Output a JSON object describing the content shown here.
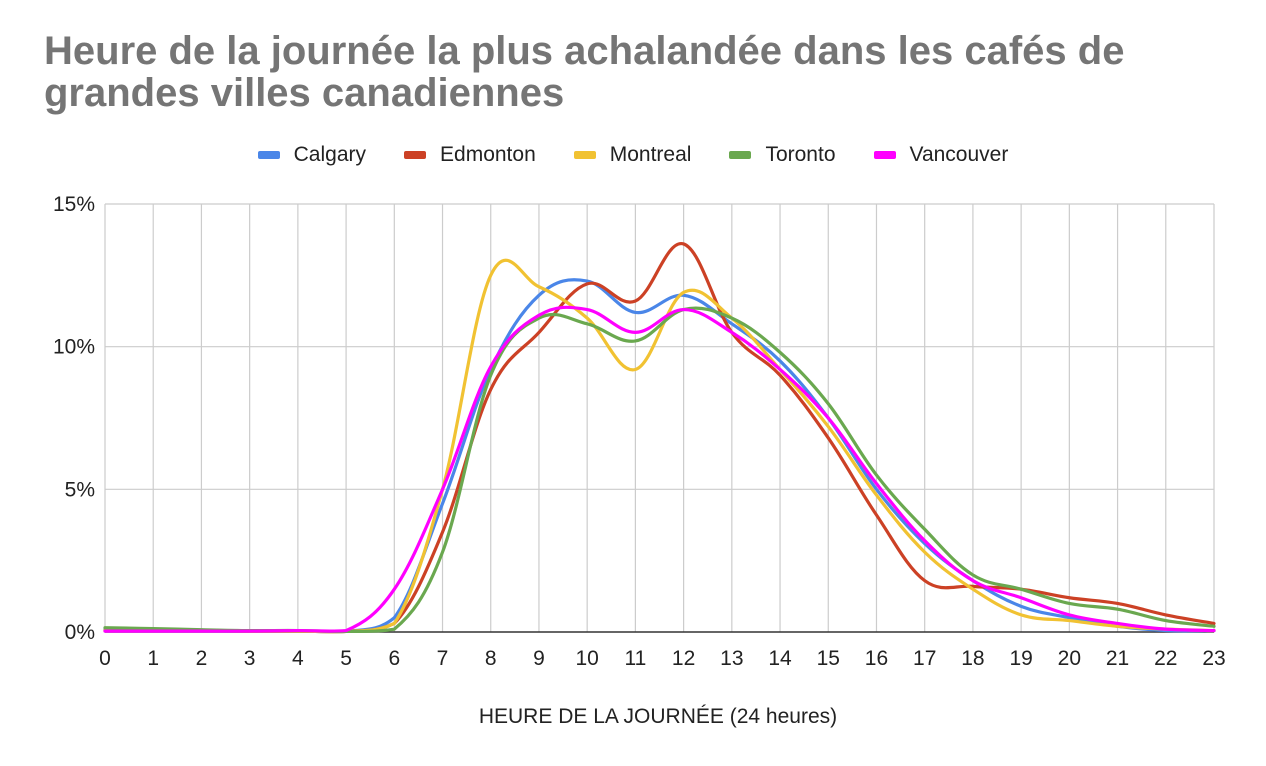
{
  "chart_data": {
    "type": "line",
    "title": "Heure de la journée la plus achalandée dans les cafés de grandes villes canadiennes",
    "xlabel": "HEURE DE LA JOURNÉE (24 heures)",
    "ylabel": "",
    "x": [
      0,
      1,
      2,
      3,
      4,
      5,
      6,
      7,
      8,
      9,
      10,
      11,
      12,
      13,
      14,
      15,
      16,
      17,
      18,
      19,
      20,
      21,
      22,
      23
    ],
    "xlim": [
      0,
      23
    ],
    "ylim": [
      0,
      15
    ],
    "y_ticks": [
      0,
      5,
      10,
      15
    ],
    "y_tick_labels": [
      "0%",
      "5%",
      "10%",
      "15%"
    ],
    "grid": true,
    "legend_position": "top",
    "series": [
      {
        "name": "Calgary",
        "color": "#4a86e8",
        "values": [
          0.1,
          0.1,
          0.05,
          0.03,
          0.03,
          0.02,
          0.5,
          4.5,
          9.2,
          11.8,
          12.3,
          11.2,
          11.8,
          10.8,
          9.5,
          7.5,
          5.0,
          3.1,
          1.8,
          0.9,
          0.5,
          0.2,
          0.05,
          0.05
        ]
      },
      {
        "name": "Edmonton",
        "color": "#cc4125",
        "values": [
          0.05,
          0.05,
          0.05,
          0.03,
          0.03,
          0.02,
          0.3,
          3.5,
          8.5,
          10.5,
          12.2,
          11.6,
          13.6,
          10.5,
          9.0,
          6.8,
          4.1,
          1.8,
          1.6,
          1.5,
          1.2,
          1.0,
          0.6,
          0.3
        ]
      },
      {
        "name": "Montreal",
        "color": "#f1c232",
        "values": [
          0.05,
          0.05,
          0.05,
          0.03,
          0.03,
          0.02,
          0.3,
          5.0,
          12.5,
          12.1,
          11.0,
          9.2,
          11.9,
          11.0,
          9.2,
          7.2,
          4.8,
          2.8,
          1.5,
          0.6,
          0.4,
          0.2,
          0.1,
          0.05
        ]
      },
      {
        "name": "Toronto",
        "color": "#6aa84f",
        "values": [
          0.15,
          0.12,
          0.08,
          0.05,
          0.05,
          0.02,
          0.1,
          2.8,
          9.0,
          11.0,
          10.8,
          10.2,
          11.3,
          11.0,
          9.8,
          8.0,
          5.5,
          3.6,
          2.0,
          1.5,
          1.0,
          0.8,
          0.4,
          0.2
        ]
      },
      {
        "name": "Vancouver",
        "color": "#ff00ff",
        "values": [
          0.03,
          0.03,
          0.03,
          0.03,
          0.05,
          0.05,
          1.5,
          5.0,
          9.3,
          11.1,
          11.3,
          10.5,
          11.3,
          10.5,
          9.2,
          7.5,
          5.2,
          3.2,
          1.8,
          1.2,
          0.6,
          0.3,
          0.1,
          0.05
        ]
      }
    ],
    "axis_line_color": "#333333",
    "grid_color": "#cccccc",
    "title_color": "#757575",
    "text_color": "#222222"
  }
}
